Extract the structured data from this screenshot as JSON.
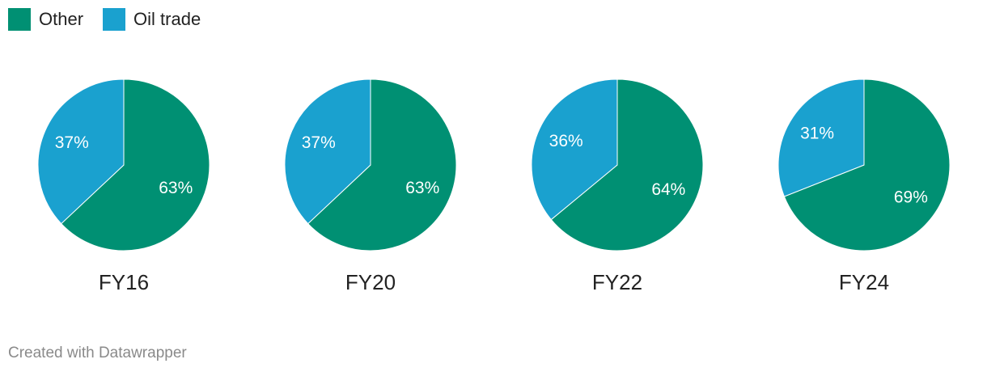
{
  "legend": {
    "items": [
      {
        "label": "Other",
        "color": "#009073"
      },
      {
        "label": "Oil trade",
        "color": "#1aa1cf"
      }
    ]
  },
  "chart_data": {
    "type": "pie",
    "series_names": [
      "Other",
      "Oil trade"
    ],
    "colors": [
      "#009073",
      "#1aa1cf"
    ],
    "charts": [
      {
        "label": "FY16",
        "values": [
          63,
          37
        ],
        "value_labels": [
          "63%",
          "37%"
        ]
      },
      {
        "label": "FY20",
        "values": [
          63,
          37
        ],
        "value_labels": [
          "63%",
          "37%"
        ]
      },
      {
        "label": "FY22",
        "values": [
          64,
          36
        ],
        "value_labels": [
          "64%",
          "36%"
        ]
      },
      {
        "label": "FY24",
        "values": [
          69,
          31
        ],
        "value_labels": [
          "69%",
          "31%"
        ]
      }
    ]
  },
  "footer": {
    "credit": "Created with Datawrapper"
  }
}
